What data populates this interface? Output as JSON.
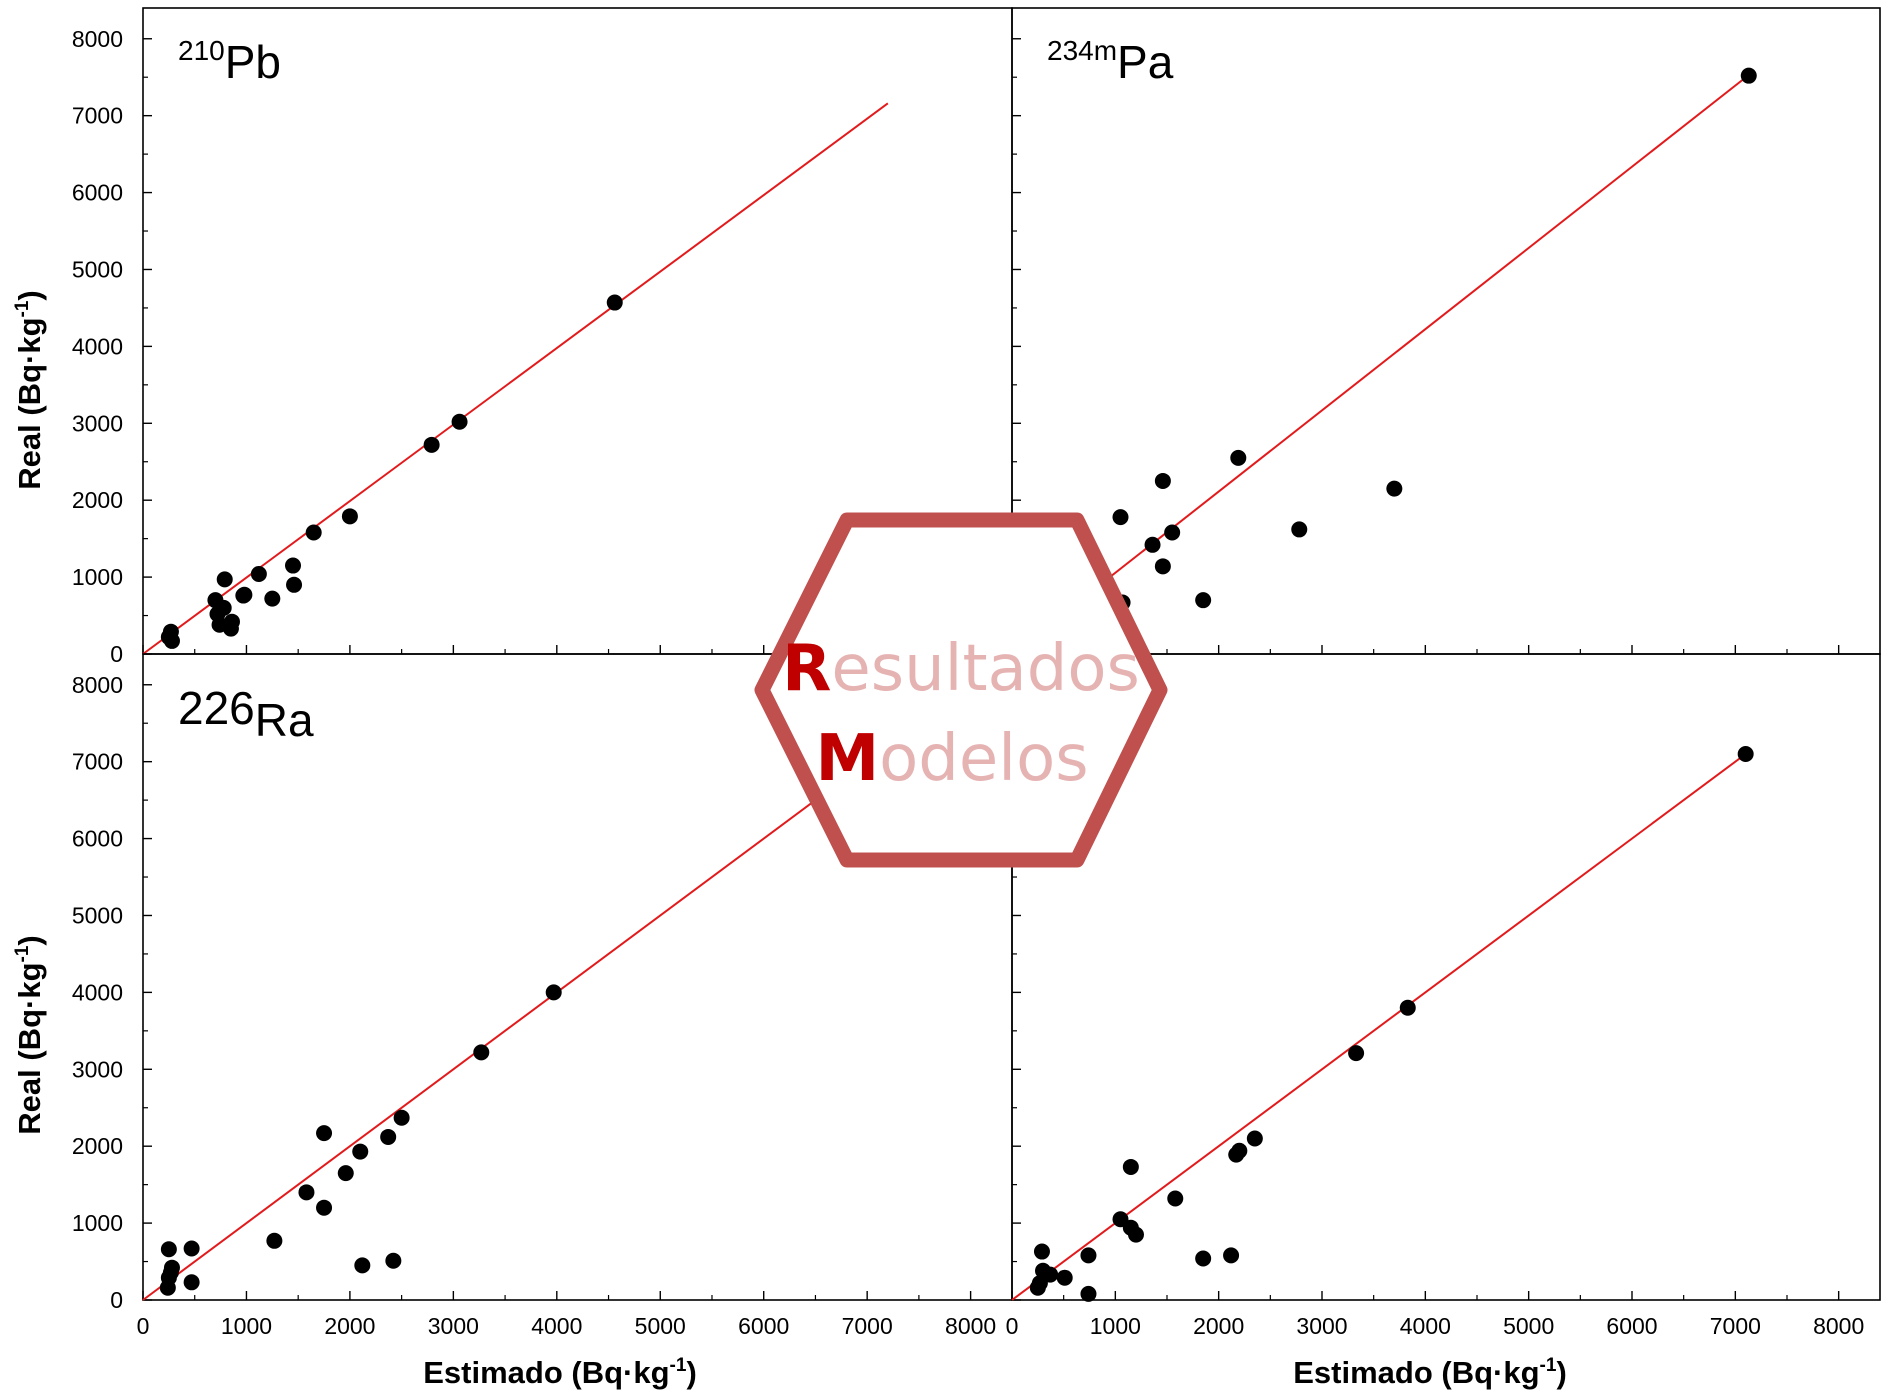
{
  "colors": {
    "fit_line": "#e31a1c",
    "points": "#000000",
    "hexagon_stroke": "#c0504d",
    "overlay_initial": "#c00000",
    "overlay_rest": "#e6b3b3"
  },
  "x_axis_label": {
    "main": "Estimado (Bq·kg",
    "sup": "-1",
    "close": ")"
  },
  "y_axis_label": {
    "main": "Real (Bq·kg",
    "sup": "-1",
    "close": ")"
  },
  "overlay": {
    "shape": "hexagon",
    "line1": {
      "initial": "R",
      "rest": "esultados"
    },
    "line2": {
      "initial": "M",
      "rest": "odelos"
    }
  },
  "chart_data": [
    {
      "type": "scatter",
      "panel": "top-left",
      "label": {
        "sup": "210",
        "base": "Pb",
        "style": "superscript"
      },
      "xlim": [
        0,
        8400
      ],
      "ylim": [
        0,
        8400
      ],
      "x_ticks": [
        "0",
        "1000",
        "2000",
        "3000",
        "4000",
        "5000",
        "6000",
        "7000",
        "8000"
      ],
      "y_ticks": [
        "0",
        "1000",
        "2000",
        "3000",
        "4000",
        "5000",
        "6000",
        "7000",
        "8000"
      ],
      "show_x_tick_labels": false,
      "fit_line": {
        "x": [
          0,
          7200
        ],
        "y": [
          0,
          7160
        ]
      },
      "points": [
        [
          4560,
          4570
        ],
        [
          3060,
          3020
        ],
        [
          2790,
          2720
        ],
        [
          2000,
          1790
        ],
        [
          1650,
          1580
        ],
        [
          1460,
          900
        ],
        [
          1450,
          1150
        ],
        [
          1120,
          1040
        ],
        [
          1250,
          720
        ],
        [
          980,
          770
        ],
        [
          970,
          760
        ],
        [
          790,
          970
        ],
        [
          780,
          600
        ],
        [
          700,
          700
        ],
        [
          720,
          520
        ],
        [
          740,
          380
        ],
        [
          860,
          420
        ],
        [
          850,
          330
        ],
        [
          270,
          290
        ],
        [
          280,
          170
        ],
        [
          250,
          220
        ]
      ]
    },
    {
      "type": "scatter",
      "panel": "top-right",
      "label": {
        "sup": "234m",
        "base": "Pa",
        "style": "superscript"
      },
      "xlim": [
        0,
        8400
      ],
      "ylim": [
        0,
        8400
      ],
      "x_ticks": [
        "0",
        "1000",
        "2000",
        "3000",
        "4000",
        "5000",
        "6000",
        "7000",
        "8000"
      ],
      "y_ticks": [
        "0",
        "1000",
        "2000",
        "3000",
        "4000",
        "5000",
        "6000",
        "7000",
        "8000"
      ],
      "show_x_tick_labels": false,
      "show_y_tick_labels": false,
      "fit_line": {
        "x": [
          0,
          7150
        ],
        "y": [
          0,
          7550
        ]
      },
      "points": [
        [
          7130,
          7520
        ],
        [
          3700,
          2150
        ],
        [
          2780,
          1620
        ],
        [
          2190,
          2550
        ],
        [
          1850,
          700
        ],
        [
          1550,
          1580
        ],
        [
          1460,
          2250
        ],
        [
          1460,
          1140
        ],
        [
          1360,
          1420
        ],
        [
          1050,
          1780
        ],
        [
          1070,
          670
        ]
      ]
    },
    {
      "type": "scatter",
      "panel": "bottom-left",
      "label": {
        "sup": "",
        "base": "226",
        "sub": "Ra",
        "style": "subscript"
      },
      "xlim": [
        0,
        8400
      ],
      "ylim": [
        0,
        8400
      ],
      "x_ticks": [
        "0",
        "1000",
        "2000",
        "3000",
        "4000",
        "5000",
        "6000",
        "7000",
        "8000"
      ],
      "y_ticks": [
        "0",
        "1000",
        "2000",
        "3000",
        "4000",
        "5000",
        "6000",
        "7000",
        "8000"
      ],
      "fit_line": {
        "x": [
          0,
          7150
        ],
        "y": [
          0,
          7150
        ]
      },
      "points": [
        [
          3970,
          4000
        ],
        [
          3270,
          3220
        ],
        [
          2500,
          2370
        ],
        [
          2370,
          2120
        ],
        [
          2100,
          1930
        ],
        [
          1960,
          1650
        ],
        [
          1750,
          2170
        ],
        [
          1750,
          1200
        ],
        [
          1580,
          1400
        ],
        [
          2420,
          510
        ],
        [
          2120,
          450
        ],
        [
          1270,
          770
        ],
        [
          470,
          670
        ],
        [
          470,
          230
        ],
        [
          250,
          660
        ],
        [
          280,
          420
        ],
        [
          270,
          360
        ],
        [
          250,
          290
        ],
        [
          240,
          160
        ]
      ]
    },
    {
      "type": "scatter",
      "panel": "bottom-right",
      "label": {
        "sup": "",
        "base": "",
        "style": "superscript"
      },
      "xlim": [
        0,
        8400
      ],
      "ylim": [
        0,
        8400
      ],
      "x_ticks": [
        "0",
        "1000",
        "2000",
        "3000",
        "4000",
        "5000",
        "6000",
        "7000",
        "8000"
      ],
      "y_ticks": [
        "0",
        "1000",
        "2000",
        "3000",
        "4000",
        "5000",
        "6000",
        "7000",
        "8000"
      ],
      "show_y_tick_labels": false,
      "fit_line": {
        "x": [
          0,
          7150
        ],
        "y": [
          0,
          7150
        ]
      },
      "points": [
        [
          7100,
          7100
        ],
        [
          3830,
          3800
        ],
        [
          3330,
          3210
        ],
        [
          2350,
          2100
        ],
        [
          2200,
          1940
        ],
        [
          2170,
          1890
        ],
        [
          1580,
          1320
        ],
        [
          1150,
          1730
        ],
        [
          1050,
          1050
        ],
        [
          1150,
          940
        ],
        [
          1200,
          850
        ],
        [
          2120,
          580
        ],
        [
          1850,
          540
        ],
        [
          740,
          580
        ],
        [
          740,
          80
        ],
        [
          510,
          290
        ],
        [
          370,
          330
        ],
        [
          300,
          380
        ],
        [
          290,
          630
        ],
        [
          250,
          160
        ],
        [
          270,
          220
        ]
      ]
    }
  ]
}
